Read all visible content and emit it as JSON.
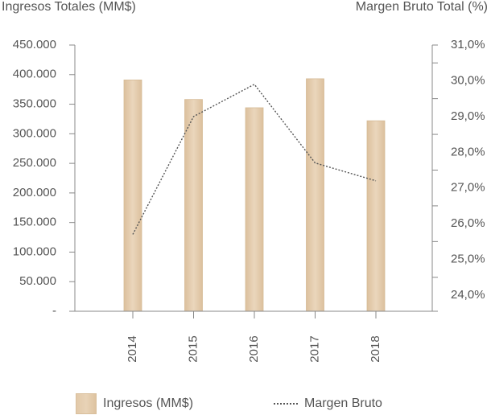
{
  "chart_data": {
    "type": "bar+line",
    "categories": [
      "2014",
      "2015",
      "2016",
      "2017",
      "2018"
    ],
    "series": [
      {
        "name": "Ingresos (MM$)",
        "type": "bar",
        "axis": "left",
        "values": [
          391000,
          358000,
          344000,
          393000,
          322000
        ],
        "color": "#e5cdb0"
      },
      {
        "name": "Margen Bruto",
        "type": "line",
        "axis": "right",
        "style": "dotted",
        "values": [
          25.7,
          29.0,
          29.9,
          27.7,
          27.2
        ],
        "color": "#555555"
      }
    ],
    "ylabel": "Ingresos Totales (MM$)",
    "y2label": "Margen Bruto Total (%)",
    "ylim": [
      0,
      450000
    ],
    "y2lim": [
      24.0,
      31.0
    ],
    "yticks": [
      "450.000",
      "400.000",
      "350.000",
      "300.000",
      "250.000",
      "200.000",
      "150.000",
      "100.000",
      "50.000",
      "-"
    ],
    "y2ticks": [
      "31,0%",
      "30,0%",
      "29,0%",
      "28,0%",
      "27,0%",
      "26,0%",
      "25,0%",
      "24,0%"
    ],
    "grid": false,
    "legend": "bottom"
  },
  "legend": {
    "bar_label": "Ingresos (MM$)",
    "line_label": "Margen Bruto"
  }
}
